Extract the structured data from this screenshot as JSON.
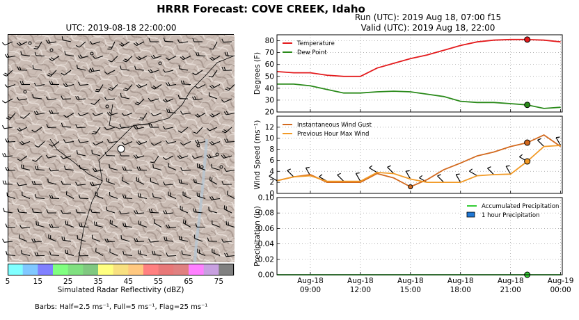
{
  "title": "HRRR Forecast: COVE CREEK, Idaho",
  "map": {
    "title": "UTC: 2019-08-18 22:00:00",
    "barbs_note": "Barbs: Half=2.5 ms⁻¹, Full=5 ms⁻¹, Flag=25 ms⁻¹",
    "colorbar": {
      "label": "Simulated Radar Reflectivity (dBZ)",
      "ticks": [
        "5",
        "15",
        "25",
        "35",
        "45",
        "55",
        "65",
        "75"
      ],
      "colors": [
        "#80ffff",
        "#80c8ff",
        "#8080ff",
        "#80ff80",
        "#80e080",
        "#80c880",
        "#ffff80",
        "#f8e080",
        "#ffc880",
        "#ff8080",
        "#e87878",
        "#e08080",
        "#ff80ff",
        "#c8a0e0",
        "#808080"
      ]
    }
  },
  "run": {
    "line1": "Run (UTC): 2019 Aug 18, 07:00 f15",
    "line2": "Valid (UTC): 2019 Aug 18, 22:00"
  },
  "chart_data": [
    {
      "type": "line",
      "ylabel": "Degrees (F)",
      "ylim": [
        20,
        85
      ],
      "yticks": [
        20,
        30,
        40,
        50,
        60,
        70,
        80
      ],
      "legend": "top-left",
      "grid": true,
      "series": [
        {
          "name": "Temperature",
          "color": "#e31a1c",
          "x": [
            7,
            8,
            9,
            10,
            11,
            12,
            13,
            14,
            15,
            16,
            17,
            18,
            19,
            20,
            21,
            22,
            23,
            24
          ],
          "values": [
            54,
            53,
            53,
            51,
            50,
            50,
            57,
            61,
            65,
            68,
            72,
            76,
            79,
            80.5,
            81,
            81,
            80.5,
            79
          ]
        },
        {
          "name": "Dew Point",
          "color": "#2a8a1a",
          "x": [
            7,
            8,
            9,
            10,
            11,
            12,
            13,
            14,
            15,
            16,
            17,
            18,
            19,
            20,
            21,
            22,
            23,
            24
          ],
          "values": [
            43.5,
            43.5,
            42,
            39,
            36,
            36,
            37,
            37.5,
            37,
            35,
            33,
            29,
            28,
            28,
            27,
            26,
            23,
            24
          ]
        }
      ],
      "highlight": [
        {
          "x": 22,
          "series": 0
        },
        {
          "x": 22,
          "series": 1
        }
      ]
    },
    {
      "type": "line",
      "ylabel": "Wind Speed (ms⁻¹)",
      "ylim": [
        0,
        14
      ],
      "yticks": [
        0,
        2,
        4,
        6,
        8,
        10,
        12
      ],
      "legend": "top-left",
      "grid": true,
      "series": [
        {
          "name": "Instantaneous Wind Gust",
          "color": "#d2691e",
          "x": [
            7,
            8,
            9,
            10,
            11,
            12,
            13,
            14,
            15,
            16,
            17,
            18,
            19,
            20,
            21,
            22,
            23,
            24
          ],
          "values": [
            2.3,
            3,
            3.4,
            2,
            2,
            2,
            3.6,
            2.8,
            1.2,
            2.5,
            4.3,
            5.5,
            6.8,
            7.5,
            8.5,
            9.2,
            10.6,
            8.5
          ]
        },
        {
          "name": "Previous Hour Max Wind",
          "color": "#f29a26",
          "x": [
            7,
            8,
            9,
            10,
            11,
            12,
            13,
            14,
            15,
            16,
            17,
            18,
            19,
            20,
            21,
            22,
            23,
            24
          ],
          "values": [
            2.3,
            3,
            3.2,
            2.2,
            2.2,
            2.2,
            3.8,
            3.6,
            2.6,
            2,
            2,
            2,
            3.2,
            3.4,
            3.5,
            5.8,
            8.5,
            8.7
          ]
        }
      ],
      "highlight": [
        {
          "x": 22,
          "series": 0
        },
        {
          "x": 22,
          "series": 1
        },
        {
          "x": 15,
          "series": 0
        }
      ]
    },
    {
      "type": "line",
      "ylabel": "Precipitation (in)",
      "ylim": [
        0,
        0.1
      ],
      "yticks": [
        "0.00",
        "0.02",
        "0.04",
        "0.06",
        "0.08",
        "0.10"
      ],
      "legend": "top-right",
      "grid": true,
      "series": [
        {
          "name": "Accumulated Precipitation",
          "color": "#33cc33",
          "x": [
            7,
            24
          ],
          "values": [
            0,
            0
          ]
        },
        {
          "name": "1 hour Precipitation",
          "color": "#1f77d4",
          "kind": "bar",
          "x": [],
          "values": []
        }
      ],
      "highlight": [
        {
          "x": 22,
          "series": 0
        }
      ]
    }
  ],
  "x_axis": {
    "range": [
      7,
      24.1
    ],
    "ticks": [
      {
        "x": 9,
        "line1": "Aug-18",
        "line2": "09:00"
      },
      {
        "x": 12,
        "line1": "Aug-18",
        "line2": "12:00"
      },
      {
        "x": 15,
        "line1": "Aug-18",
        "line2": "15:00"
      },
      {
        "x": 18,
        "line1": "Aug-18",
        "line2": "18:00"
      },
      {
        "x": 21,
        "line1": "Aug-18",
        "line2": "21:00"
      },
      {
        "x": 24,
        "line1": "Aug-19",
        "line2": "00:00"
      }
    ]
  }
}
